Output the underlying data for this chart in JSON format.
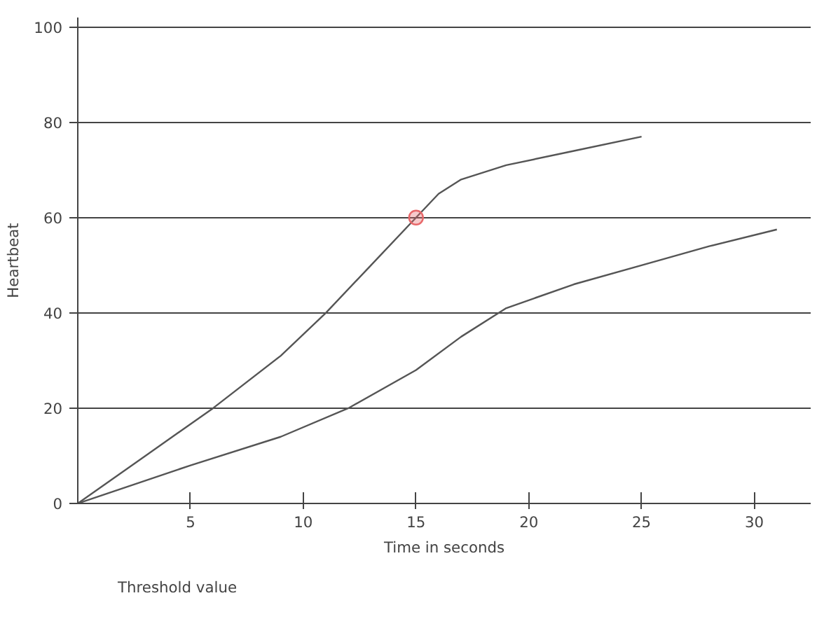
{
  "chart_data": {
    "type": "line",
    "xlabel": "Time in seconds",
    "ylabel": "Heartbeat",
    "xlim": [
      0,
      32.5
    ],
    "ylim": [
      0,
      102
    ],
    "xticks": [
      5,
      10,
      15,
      20,
      25,
      30
    ],
    "yticks": [
      0,
      20,
      40,
      60,
      80,
      100
    ],
    "grid": "y",
    "legend": "bottom left",
    "line_style": "solid",
    "series": [
      {
        "color": "#555555",
        "x": [
          0,
          3,
          6,
          9,
          11,
          13,
          15,
          16,
          17,
          19,
          22,
          25
        ],
        "values": [
          0,
          10,
          20,
          31,
          40,
          50,
          60,
          65,
          68,
          71,
          74,
          77
        ]
      },
      {
        "color": "#555555",
        "x": [
          0,
          5,
          9,
          12,
          15,
          17,
          19,
          22,
          25,
          28,
          31
        ],
        "values": [
          0,
          8,
          14,
          20,
          28,
          35,
          41,
          46,
          50,
          54,
          57.5
        ]
      },
      {
        "type": "scatter",
        "name": "Threshold value",
        "marker": "circle",
        "color": "#e8686a",
        "x": [
          15
        ],
        "values": [
          60
        ]
      }
    ]
  }
}
